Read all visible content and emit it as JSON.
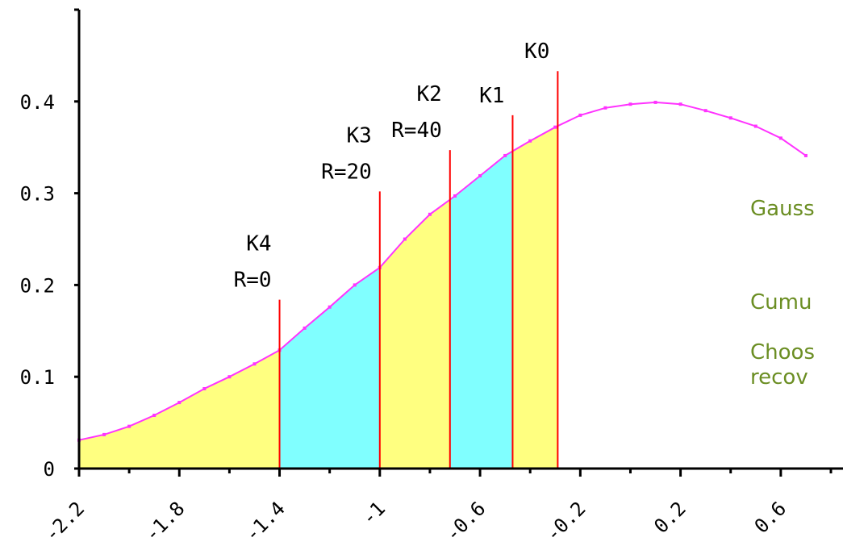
{
  "chart_data": {
    "type": "area",
    "colors": {
      "curve": "#ff33ff",
      "fill_a": "#ffff80",
      "fill_b": "#80ffff",
      "threshold": "#ff0000",
      "axis": "#000000",
      "note_text": "#6b8e23"
    },
    "x_tick_values": [
      -2.2,
      -1.8,
      -1.4,
      -1.0,
      -0.6,
      -0.2,
      0.2,
      0.6
    ],
    "x_tick_labels": [
      "-2.2",
      "-1.8",
      "-1.4",
      "-1",
      "-0.6",
      "-0.2",
      "0.2",
      "0.6"
    ],
    "y_tick_values": [
      0,
      0.1,
      0.2,
      0.3,
      0.4
    ],
    "y_tick_labels": [
      "0",
      "0.1",
      "0.2",
      "0.3",
      "0.4"
    ],
    "xlim": [
      -2.2,
      0.8
    ],
    "ylim": [
      0,
      0.5
    ],
    "grid": false,
    "series": [
      {
        "x": [
          -2.2,
          -2.1,
          -2.0,
          -1.9,
          -1.8,
          -1.7,
          -1.6,
          -1.5,
          -1.4,
          -1.3,
          -1.2,
          -1.1,
          -1.0,
          -0.9,
          -0.8,
          -0.7,
          -0.6,
          -0.5,
          -0.4,
          -0.3,
          -0.2,
          -0.1,
          0.0,
          0.1,
          0.2,
          0.3,
          0.4,
          0.5,
          0.6,
          0.7
        ],
        "y": [
          0.031,
          0.037,
          0.046,
          0.058,
          0.072,
          0.087,
          0.1,
          0.114,
          0.129,
          0.153,
          0.176,
          0.2,
          0.219,
          0.25,
          0.277,
          0.297,
          0.319,
          0.341,
          0.357,
          0.372,
          0.385,
          0.393,
          0.397,
          0.399,
          0.397,
          0.39,
          0.382,
          0.373,
          0.36,
          0.341
        ]
      }
    ],
    "bands": [
      {
        "from": -2.2,
        "to": -1.4,
        "fill": "yellow"
      },
      {
        "from": -1.4,
        "to": -1.0,
        "fill": "cyan"
      },
      {
        "from": -1.0,
        "to": -0.72,
        "fill": "yellow"
      },
      {
        "from": -0.72,
        "to": -0.47,
        "fill": "cyan"
      },
      {
        "from": -0.47,
        "to": -0.29,
        "fill": "yellow"
      }
    ],
    "thresholds": [
      {
        "x": -1.4,
        "top": 0.184,
        "labels": [
          "K4",
          "R=0"
        ]
      },
      {
        "x": -1.0,
        "top": 0.302,
        "labels": [
          "K3",
          "R=20"
        ]
      },
      {
        "x": -0.72,
        "top": 0.347,
        "labels": [
          "K2",
          "R=40"
        ]
      },
      {
        "x": -0.47,
        "top": 0.385,
        "labels": [
          "K1"
        ]
      },
      {
        "x": -0.29,
        "top": 0.433,
        "labels": [
          "K0"
        ]
      }
    ]
  },
  "notes": [
    "Gauss",
    "Cumu",
    "Choos",
    "recov"
  ]
}
